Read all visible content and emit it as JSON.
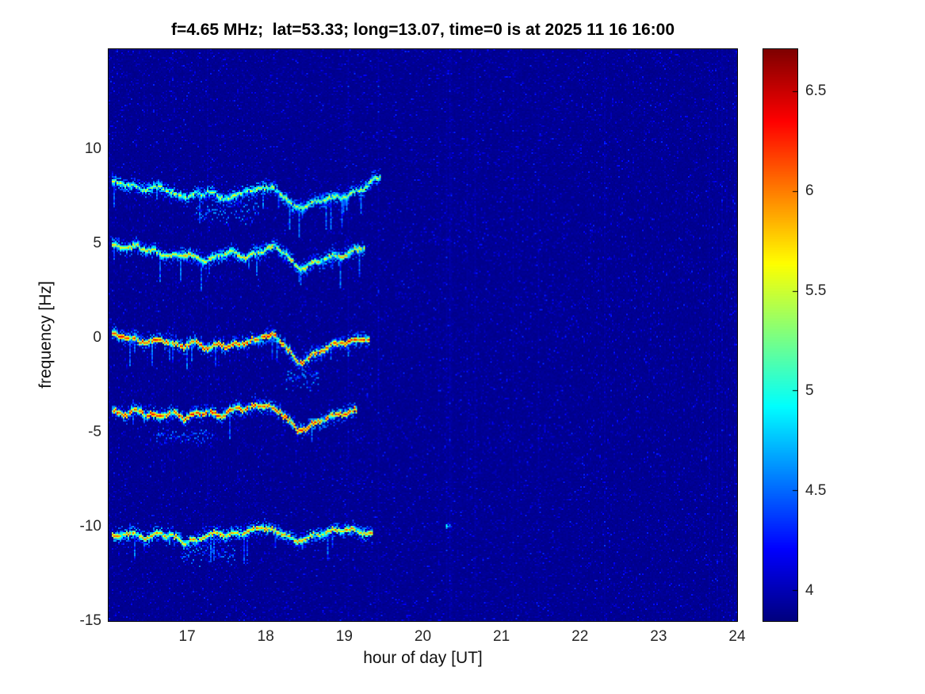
{
  "chart_data": {
    "type": "heatmap",
    "description": "Doppler spectrogram: spectral power vs hour of day, jet colormap on dark blue background, five wavy Doppler traces ending near 19.4 UT",
    "title": "f=4.65 MHz;  lat=53.33; long=13.07, time=0 is at 2025 11 16 16:00",
    "xlabel": "hour of day [UT]",
    "ylabel": "frequency [Hz]",
    "xlim": [
      16,
      24
    ],
    "ylim": [
      -15,
      15.3
    ],
    "x_ticks": [
      17,
      18,
      19,
      20,
      21,
      22,
      23,
      24
    ],
    "y_ticks": [
      10,
      5,
      0,
      -5,
      -10,
      -15
    ],
    "colorbar": {
      "ticks": [
        6.5,
        6,
        5.5,
        5,
        4.5,
        4
      ],
      "range": [
        3.85,
        6.71
      ],
      "colormap": "jet"
    },
    "background_value": 3.9,
    "traces": [
      {
        "name": "doppler-trace-plus8Hz",
        "peak": 5.7,
        "points": [
          [
            16.05,
            8.3
          ],
          [
            16.2,
            8.2
          ],
          [
            16.35,
            8.0
          ],
          [
            16.5,
            7.9
          ],
          [
            16.65,
            8.1
          ],
          [
            16.8,
            7.7
          ],
          [
            16.95,
            7.5
          ],
          [
            17.1,
            7.6
          ],
          [
            17.25,
            7.8
          ],
          [
            17.4,
            7.5
          ],
          [
            17.55,
            7.4
          ],
          [
            17.7,
            7.8
          ],
          [
            17.85,
            7.9
          ],
          [
            18.0,
            8.1
          ],
          [
            18.1,
            7.9
          ],
          [
            18.25,
            7.5
          ],
          [
            18.35,
            6.9
          ],
          [
            18.5,
            7.0
          ],
          [
            18.65,
            7.3
          ],
          [
            18.8,
            7.4
          ],
          [
            18.95,
            7.5
          ],
          [
            19.1,
            7.7
          ],
          [
            19.25,
            8.0
          ],
          [
            19.35,
            8.4
          ],
          [
            19.45,
            8.6
          ]
        ]
      },
      {
        "name": "doppler-trace-plus4.5Hz",
        "peak": 5.9,
        "points": [
          [
            16.05,
            4.9
          ],
          [
            16.2,
            4.8
          ],
          [
            16.35,
            4.9
          ],
          [
            16.5,
            4.7
          ],
          [
            16.65,
            4.5
          ],
          [
            16.8,
            4.3
          ],
          [
            16.95,
            4.5
          ],
          [
            17.1,
            4.3
          ],
          [
            17.25,
            4.1
          ],
          [
            17.4,
            4.4
          ],
          [
            17.55,
            4.6
          ],
          [
            17.7,
            4.3
          ],
          [
            17.85,
            4.5
          ],
          [
            18.0,
            4.8
          ],
          [
            18.1,
            4.9
          ],
          [
            18.25,
            4.5
          ],
          [
            18.4,
            3.7
          ],
          [
            18.5,
            3.8
          ],
          [
            18.65,
            4.1
          ],
          [
            18.8,
            4.3
          ],
          [
            18.95,
            4.4
          ],
          [
            19.1,
            4.6
          ],
          [
            19.25,
            4.9
          ]
        ]
      },
      {
        "name": "doppler-trace-0Hz",
        "peak": 6.4,
        "points": [
          [
            16.05,
            0.2
          ],
          [
            16.2,
            0.1
          ],
          [
            16.35,
            -0.1
          ],
          [
            16.5,
            -0.2
          ],
          [
            16.65,
            0.0
          ],
          [
            16.8,
            -0.3
          ],
          [
            16.95,
            -0.4
          ],
          [
            17.1,
            -0.2
          ],
          [
            17.25,
            -0.5
          ],
          [
            17.4,
            -0.3
          ],
          [
            17.55,
            -0.4
          ],
          [
            17.7,
            -0.2
          ],
          [
            17.85,
            -0.1
          ],
          [
            18.0,
            0.2
          ],
          [
            18.1,
            0.1
          ],
          [
            18.25,
            -0.4
          ],
          [
            18.4,
            -1.3
          ],
          [
            18.55,
            -1.0
          ],
          [
            18.7,
            -0.6
          ],
          [
            18.85,
            -0.3
          ],
          [
            19.0,
            -0.2
          ],
          [
            19.15,
            -0.1
          ],
          [
            19.3,
            0.0
          ]
        ]
      },
      {
        "name": "doppler-trace-minus4Hz",
        "peak": 6.4,
        "points": [
          [
            16.05,
            -3.9
          ],
          [
            16.2,
            -4.0
          ],
          [
            16.35,
            -3.8
          ],
          [
            16.5,
            -4.0
          ],
          [
            16.65,
            -4.1
          ],
          [
            16.8,
            -3.9
          ],
          [
            16.95,
            -4.2
          ],
          [
            17.1,
            -4.0
          ],
          [
            17.25,
            -3.9
          ],
          [
            17.4,
            -4.1
          ],
          [
            17.55,
            -3.8
          ],
          [
            17.7,
            -3.7
          ],
          [
            17.85,
            -3.6
          ],
          [
            18.0,
            -3.5
          ],
          [
            18.1,
            -3.7
          ],
          [
            18.25,
            -4.1
          ],
          [
            18.4,
            -4.9
          ],
          [
            18.55,
            -4.6
          ],
          [
            18.7,
            -4.3
          ],
          [
            18.85,
            -4.1
          ],
          [
            19.0,
            -3.9
          ],
          [
            19.15,
            -3.8
          ]
        ]
      },
      {
        "name": "doppler-trace-minus10Hz",
        "peak": 6.1,
        "points": [
          [
            16.05,
            -10.5
          ],
          [
            16.2,
            -10.3
          ],
          [
            16.35,
            -10.4
          ],
          [
            16.5,
            -10.6
          ],
          [
            16.65,
            -10.3
          ],
          [
            16.8,
            -10.5
          ],
          [
            16.95,
            -10.8
          ],
          [
            17.1,
            -10.7
          ],
          [
            17.25,
            -10.4
          ],
          [
            17.4,
            -10.3
          ],
          [
            17.55,
            -10.4
          ],
          [
            17.7,
            -10.3
          ],
          [
            17.85,
            -10.1
          ],
          [
            18.0,
            -10.0
          ],
          [
            18.1,
            -10.2
          ],
          [
            18.25,
            -10.4
          ],
          [
            18.4,
            -10.8
          ],
          [
            18.55,
            -10.5
          ],
          [
            18.7,
            -10.3
          ],
          [
            18.85,
            -10.2
          ],
          [
            19.0,
            -10.1
          ],
          [
            19.2,
            -10.3
          ],
          [
            19.35,
            -10.4
          ]
        ]
      }
    ],
    "halos": [
      {
        "x0": 17.1,
        "x1": 17.9,
        "y": 6.8,
        "spread": 0.8,
        "value": 4.65
      },
      {
        "x0": 18.25,
        "x1": 18.65,
        "y": -2.2,
        "spread": 0.6,
        "value": 4.7
      },
      {
        "x0": 16.6,
        "x1": 17.3,
        "y": -5.2,
        "spread": 0.5,
        "value": 4.6
      },
      {
        "x0": 16.9,
        "x1": 17.6,
        "y": -11.4,
        "spread": 0.7,
        "value": 4.6
      }
    ],
    "spots": [
      {
        "x": 20.32,
        "y": -9.9,
        "value": 5.0
      }
    ]
  },
  "colors": {
    "plot_background": "#00008f",
    "title_text": "#000000",
    "axis_text": "#262626"
  }
}
